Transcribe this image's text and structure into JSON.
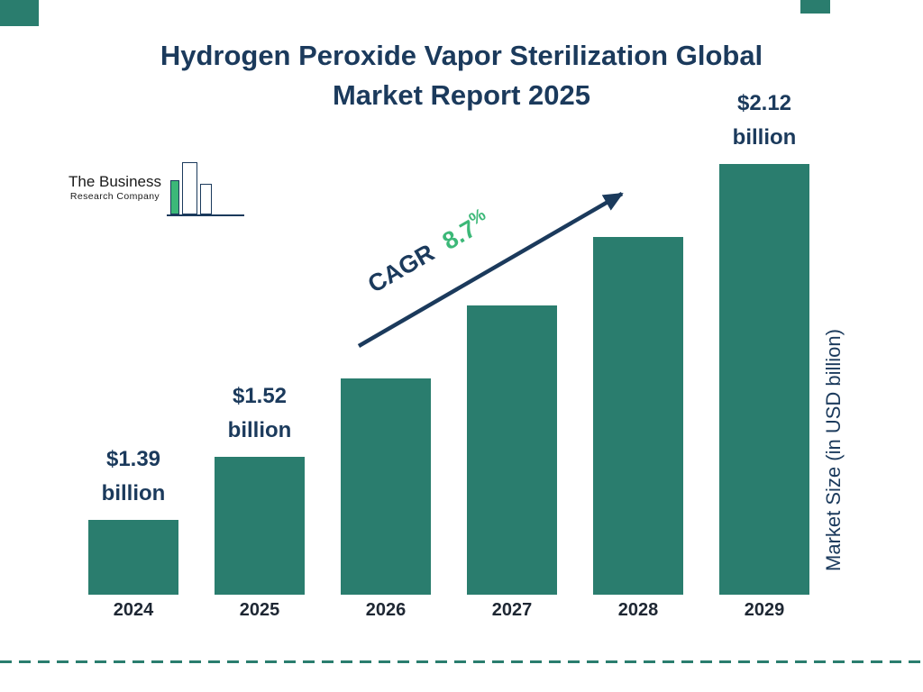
{
  "page": {
    "title_line1": "Hydrogen Peroxide Vapor Sterilization Global",
    "title_line2": "Market Report 2025"
  },
  "logo": {
    "name_line1": "The Business",
    "name_line2": "Research Company"
  },
  "cagr": {
    "label": "CAGR",
    "value": "8.7",
    "percent_sign": "%"
  },
  "y_axis": {
    "label": "Market Size (in USD billion)"
  },
  "chart_data": {
    "type": "bar",
    "title": "Hydrogen Peroxide Vapor Sterilization Global Market Report 2025",
    "categories": [
      "2024",
      "2025",
      "2026",
      "2027",
      "2028",
      "2029"
    ],
    "values": [
      1.39,
      1.52,
      1.68,
      1.83,
      1.97,
      2.12
    ],
    "unit": "USD billion",
    "ylabel": "Market Size (in USD billion)",
    "cagr_percent": "8.7%",
    "legend": "none",
    "grid": "off",
    "data_labels": [
      {
        "category": "2024",
        "line1": "$1.39",
        "line2": "billion"
      },
      {
        "category": "2025",
        "line1": "$1.52",
        "line2": "billion"
      },
      {
        "category": "2029",
        "line1": "$2.12",
        "line2": "billion"
      }
    ]
  },
  "colors": {
    "navy": "#1b3a5c",
    "teal": "#2a7d6e",
    "green": "#3cb878",
    "text_dark": "#1e2733"
  }
}
